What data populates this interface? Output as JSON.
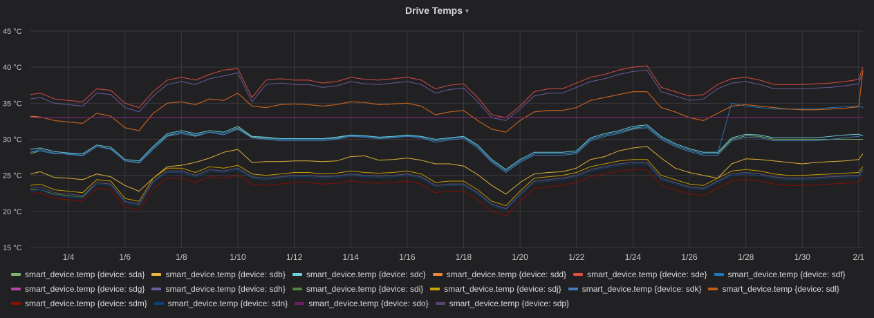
{
  "panel": {
    "title": "Drive Temps",
    "menu_caret": "▾"
  },
  "chart_data": {
    "type": "line",
    "title": "Drive Temps",
    "xlabel": "",
    "ylabel": "",
    "ylim": [
      15,
      45
    ],
    "y_ticks": [
      15,
      20,
      25,
      30,
      35,
      40,
      45
    ],
    "y_unit": "°C",
    "x_range": [
      2.65,
      32.15
    ],
    "x_tick_values": [
      4,
      6,
      8,
      10,
      12,
      14,
      16,
      18,
      20,
      22,
      24,
      26,
      28,
      30,
      32
    ],
    "x_tick_labels": [
      "1/4",
      "1/6",
      "1/8",
      "1/10",
      "1/12",
      "1/14",
      "1/16",
      "1/18",
      "1/20",
      "1/22",
      "1/24",
      "1/26",
      "1/28",
      "1/30",
      "2/1"
    ],
    "x": [
      2.65,
      3,
      3.5,
      4,
      4.5,
      5,
      5.5,
      6,
      6.5,
      7,
      7.5,
      8,
      8.5,
      9,
      9.5,
      10,
      10.5,
      11,
      11.5,
      12,
      12.5,
      13,
      13.5,
      14,
      14.5,
      15,
      15.5,
      16,
      16.5,
      17,
      17.5,
      18,
      18.5,
      19,
      19.5,
      20,
      20.5,
      21,
      21.5,
      22,
      22.5,
      23,
      23.5,
      24,
      24.5,
      25,
      25.5,
      26,
      26.5,
      27,
      27.5,
      28,
      28.5,
      29,
      29.5,
      30,
      30.5,
      31,
      31.5,
      32,
      32.15
    ],
    "series": [
      {
        "name": "smart_device.temp {device: sda}",
        "color": "#7eb26d",
        "values": [
          28,
          28.4,
          28,
          28,
          27.8,
          29,
          28.7,
          27,
          26.8,
          28.8,
          30.5,
          31,
          30.5,
          31,
          30.8,
          31.6,
          30.3,
          30.2,
          30,
          30,
          30,
          30,
          30.2,
          30.5,
          30.4,
          30.2,
          30.3,
          30.5,
          30.3,
          29.8,
          30.1,
          30.3,
          29,
          27,
          25.6,
          27,
          28,
          28,
          28,
          28.2,
          30,
          30.6,
          31,
          31.5,
          31.8,
          30.2,
          29.2,
          28.5,
          28,
          28,
          30,
          30.5,
          30.4,
          30,
          30,
          30,
          30,
          30,
          30,
          30,
          30
        ]
      },
      {
        "name": "smart_device.temp {device: sdb}",
        "color": "#eab839",
        "values": [
          25.2,
          25.5,
          24.7,
          24.6,
          24.4,
          25.2,
          24.8,
          23.6,
          22.8,
          24.6,
          26.2,
          26.4,
          26.8,
          27.4,
          28.2,
          28.6,
          26.8,
          26.9,
          26.9,
          27,
          27,
          26.9,
          27,
          27.6,
          27.7,
          27.1,
          27.2,
          27.4,
          27.1,
          26.6,
          26.6,
          26.3,
          25.1,
          23.6,
          22.4,
          24,
          25.2,
          25.4,
          25.5,
          26,
          27.2,
          27.6,
          28.4,
          28.8,
          29,
          27.4,
          26,
          25.4,
          25,
          24.6,
          26.6,
          27.3,
          27.2,
          27,
          26.8,
          26.6,
          26.8,
          26.9,
          27,
          27.2,
          28
        ]
      },
      {
        "name": "smart_device.temp {device: sdc}",
        "color": "#6ed0e0",
        "values": [
          28.6,
          28.8,
          28.3,
          28.1,
          28,
          29.2,
          28.9,
          27.2,
          27,
          29,
          30.8,
          31.2,
          30.8,
          31.2,
          31,
          31.8,
          30.4,
          30.3,
          30.1,
          30.1,
          30.1,
          30.1,
          30.3,
          30.6,
          30.5,
          30.3,
          30.4,
          30.6,
          30.4,
          30,
          30.2,
          30.4,
          29.2,
          27.2,
          25.8,
          27.2,
          28.2,
          28.2,
          28.2,
          28.4,
          30.2,
          30.8,
          31.2,
          31.8,
          32,
          30.4,
          29.4,
          28.7,
          28.2,
          28.2,
          30.2,
          30.7,
          30.6,
          30.2,
          30.2,
          30.2,
          30.2,
          30.4,
          30.6,
          30.7,
          30.5
        ]
      },
      {
        "name": "smart_device.temp {device: sdd}",
        "color": "#ef843c",
        "values": [
          33.2,
          33.1,
          32.6,
          32.4,
          32.2,
          33.6,
          33.2,
          31.6,
          31.2,
          33.6,
          35,
          35.2,
          34.8,
          35.6,
          35.4,
          36.4,
          34.6,
          34.4,
          34.8,
          34.9,
          34.8,
          34.6,
          34.8,
          35.2,
          35.1,
          34.8,
          34.9,
          35,
          34.6,
          33.4,
          33.8,
          34,
          32.6,
          31.4,
          31,
          32.6,
          33.8,
          34,
          34,
          34.4,
          35.4,
          35.8,
          36.2,
          36.6,
          36.6,
          34.4,
          33.8,
          33,
          32.6,
          33.6,
          34.6,
          34.8,
          34.6,
          34.4,
          34.2,
          34.1,
          34.1,
          34.2,
          34.3,
          34.5,
          39.6
        ]
      },
      {
        "name": "smart_device.temp {device: sde}",
        "color": "#e24d42",
        "values": [
          36.2,
          36.4,
          35.6,
          35.4,
          35.2,
          37,
          36.8,
          35,
          34.4,
          36.6,
          38.2,
          38.6,
          38.2,
          39,
          39.6,
          39.8,
          35.8,
          38.2,
          38.4,
          38.2,
          38.2,
          37.8,
          38,
          38.6,
          38.3,
          38.2,
          38.4,
          38.6,
          38.2,
          37,
          37.5,
          37.7,
          35.8,
          33.4,
          33,
          34.6,
          36.6,
          37,
          37,
          37.8,
          38.6,
          39,
          39.6,
          40,
          40.2,
          37.2,
          36.6,
          36,
          36.2,
          37.6,
          38.4,
          38.6,
          38.2,
          37.6,
          37.6,
          37.6,
          37.7,
          37.8,
          38,
          38.3,
          40
        ]
      },
      {
        "name": "smart_device.temp {device: sdf}",
        "color": "#1f78c1",
        "values": [
          28.2,
          28.4,
          28,
          28,
          27.8,
          29,
          28.6,
          27,
          26.8,
          28.8,
          30.6,
          31,
          30.6,
          31,
          30.8,
          31.5,
          30.2,
          30.1,
          30,
          30,
          30,
          30,
          30.1,
          30.5,
          30.4,
          30.2,
          30.3,
          30.5,
          30.3,
          29.8,
          30.1,
          30.3,
          29,
          27,
          25.6,
          27,
          28,
          28,
          28,
          28.2,
          30,
          30.6,
          31,
          31.6,
          31.8,
          30.2,
          29.2,
          28.5,
          28,
          28,
          35,
          34.6,
          34.4,
          34.2,
          34.2,
          34.2,
          34.2,
          34.4,
          34.5,
          34.6,
          34.4
        ]
      },
      {
        "name": "smart_device.temp {device: sdg}",
        "color": "#ba43a9",
        "values": [
          33,
          33,
          33,
          33,
          33,
          33,
          33,
          33,
          33,
          33,
          33,
          33,
          33,
          33,
          33,
          33,
          33,
          33,
          33,
          33,
          33,
          33,
          33,
          33,
          33,
          33,
          33,
          33,
          33,
          33,
          33,
          33,
          33,
          33,
          33,
          33,
          33,
          33,
          33,
          33,
          33,
          33,
          33,
          33,
          33,
          33,
          33,
          33,
          33,
          33,
          33,
          33,
          33,
          33,
          33,
          33,
          33,
          33,
          33,
          33,
          33
        ]
      },
      {
        "name": "smart_device.temp {device: sdh}",
        "color": "#705da0",
        "values": [
          35.6,
          35.8,
          35,
          34.8,
          34.6,
          36.4,
          36.2,
          34.4,
          33.8,
          36,
          37.6,
          38,
          37.6,
          38.4,
          38.8,
          39.2,
          35.2,
          37.6,
          37.8,
          37.6,
          37.6,
          37.2,
          37.4,
          38,
          37.7,
          37.6,
          37.8,
          38,
          37.6,
          36.4,
          36.9,
          37.1,
          35.2,
          33,
          32.6,
          34.2,
          36,
          36.4,
          36.4,
          37.2,
          38,
          38.4,
          39,
          39.4,
          39.6,
          36.6,
          36,
          35.4,
          35.6,
          37,
          37.8,
          38,
          37.6,
          37,
          37,
          37,
          37.1,
          37.2,
          37.4,
          37.7,
          39.4
        ]
      },
      {
        "name": "smart_device.temp {device: sdi}",
        "color": "#508642",
        "values": [
          23,
          23,
          22.4,
          22.2,
          22,
          24,
          23.8,
          21.4,
          21,
          24.2,
          25.6,
          25.6,
          25,
          25.8,
          25.6,
          26,
          24.8,
          24.6,
          24.8,
          25,
          25,
          24.8,
          24.9,
          25.2,
          25,
          24.9,
          25,
          25.2,
          24.8,
          23.6,
          23.8,
          23.8,
          22.6,
          21,
          20.4,
          22.4,
          24.2,
          24.4,
          24.6,
          25,
          25.8,
          26.2,
          26.6,
          26.8,
          26.8,
          24.6,
          24,
          23.4,
          23.2,
          24.2,
          25.2,
          25.4,
          25.2,
          24.8,
          24.6,
          24.6,
          24.7,
          24.8,
          24.9,
          25,
          25.8
        ]
      },
      {
        "name": "smart_device.temp {device: sdj}",
        "color": "#cca300",
        "values": [
          23.6,
          23.8,
          23,
          22.8,
          22.6,
          24.4,
          24.2,
          21.8,
          21.4,
          24.6,
          26,
          26,
          25.4,
          26.2,
          26,
          26.4,
          25.2,
          25,
          25.2,
          25.4,
          25.4,
          25.2,
          25.3,
          25.6,
          25.4,
          25.3,
          25.4,
          25.6,
          25.2,
          24,
          24.2,
          24.2,
          23,
          21.4,
          20.8,
          22.8,
          24.6,
          24.8,
          25,
          25.4,
          26.2,
          26.6,
          27,
          27.2,
          27.2,
          25,
          24.4,
          23.8,
          23.6,
          24.6,
          25.6,
          25.8,
          25.6,
          25.2,
          25,
          25,
          25.1,
          25.2,
          25.3,
          25.4,
          26.2
        ]
      },
      {
        "name": "smart_device.temp {device: sdk}",
        "color": "#447ebc",
        "values": [
          28.2,
          28.6,
          28.1,
          27.9,
          27.7,
          29,
          28.7,
          27,
          26.7,
          28.6,
          30.4,
          30.8,
          30.4,
          31,
          30.6,
          31.4,
          30.2,
          30,
          29.8,
          29.8,
          29.8,
          29.8,
          30,
          30.4,
          30.3,
          30.1,
          30.2,
          30.4,
          30.2,
          29.6,
          29.9,
          30.1,
          28.8,
          26.8,
          25.4,
          26.8,
          27.8,
          27.8,
          27.8,
          28,
          29.8,
          30.4,
          30.8,
          31.4,
          31.6,
          30,
          29,
          28.3,
          27.8,
          27.8,
          29.8,
          30.3,
          30.2,
          29.8,
          29.8,
          29.8,
          29.8,
          30,
          30.2,
          30.4,
          30.6
        ]
      },
      {
        "name": "smart_device.temp {device: sdl}",
        "color": "#c15c17",
        "values": [
          33,
          33.1,
          32.6,
          32.4,
          32.2,
          33.6,
          33.2,
          31.6,
          31.2,
          33.6,
          35,
          35.2,
          34.8,
          35.6,
          35.4,
          36.4,
          34.6,
          34.4,
          34.8,
          34.9,
          34.8,
          34.6,
          34.8,
          35.2,
          35.1,
          34.8,
          34.9,
          35,
          34.6,
          33.4,
          33.8,
          34,
          32.6,
          31.4,
          31,
          32.6,
          33.8,
          34,
          34,
          34.4,
          35.4,
          35.8,
          36.2,
          36.6,
          36.6,
          34.4,
          33.8,
          33,
          32.6,
          33.6,
          34.6,
          34.8,
          34.6,
          34.4,
          34.2,
          34.1,
          34.1,
          34.2,
          34.3,
          34.5,
          39.6
        ]
      },
      {
        "name": "smart_device.temp {device: sdm}",
        "color": "#890f02",
        "values": [
          22.4,
          22.6,
          21.8,
          21.6,
          21.4,
          23.2,
          23,
          20.6,
          20.2,
          23.2,
          24.6,
          24.6,
          24,
          24.8,
          24.6,
          25,
          23.8,
          23.6,
          23.8,
          24,
          24,
          23.8,
          23.9,
          24.2,
          24,
          23.9,
          24,
          24.2,
          23.8,
          22.6,
          22.8,
          22.8,
          21.6,
          20,
          19.4,
          21.4,
          23.2,
          23.4,
          23.6,
          24,
          24.8,
          25.2,
          25.6,
          25.8,
          25.8,
          23.6,
          23,
          22.4,
          22.2,
          23.2,
          24.2,
          24.4,
          24.2,
          23.8,
          23.6,
          23.6,
          23.7,
          23.8,
          23.9,
          24,
          24.8
        ]
      },
      {
        "name": "smart_device.temp {device: sdn}",
        "color": "#0a437c",
        "values": [
          22.8,
          23,
          22.2,
          22,
          21.8,
          23.8,
          23.6,
          21.2,
          20.8,
          24,
          25.4,
          25.4,
          24.8,
          25.6,
          25.4,
          25.8,
          24.6,
          24.4,
          24.6,
          24.8,
          24.8,
          24.6,
          24.7,
          25,
          24.8,
          24.7,
          24.8,
          25,
          24.6,
          23.4,
          23.6,
          23.6,
          22.4,
          20.8,
          20.2,
          22.2,
          24,
          24.2,
          24.4,
          24.8,
          25.6,
          26,
          26.4,
          26.6,
          26.6,
          24.4,
          23.8,
          23.2,
          23,
          24,
          25,
          25.2,
          25,
          24.6,
          24.4,
          24.4,
          24.5,
          24.6,
          24.7,
          24.8,
          25.6
        ]
      },
      {
        "name": "smart_device.temp {device: sdo}",
        "color": "#6d1f62",
        "values": [
          33,
          33,
          33,
          33,
          33,
          33,
          33,
          33,
          33,
          33,
          33,
          33,
          33,
          33,
          33,
          33,
          33,
          33,
          33,
          33,
          33,
          33,
          33,
          33,
          33,
          33,
          33,
          33,
          33,
          33,
          33,
          33,
          33,
          33,
          33,
          33,
          33,
          33,
          33,
          33,
          33,
          33,
          33,
          33,
          33,
          33,
          33,
          33,
          33,
          33,
          33,
          33,
          33,
          33,
          33,
          33,
          33,
          33,
          33,
          33,
          33
        ]
      },
      {
        "name": "smart_device.temp {device: sdp}",
        "color": "#584477",
        "values": [
          23.2,
          23.4,
          22.6,
          22.4,
          22.2,
          24,
          23.8,
          21.4,
          21,
          24.2,
          25.6,
          25.6,
          25,
          25.8,
          25.6,
          26,
          24.8,
          24.6,
          24.8,
          25,
          25,
          24.8,
          24.9,
          25.2,
          25,
          24.9,
          25,
          25.2,
          24.8,
          23.6,
          23.8,
          23.8,
          22.6,
          21,
          20.4,
          22.4,
          24.2,
          24.4,
          24.6,
          25,
          25.8,
          26.2,
          26.6,
          26.8,
          26.8,
          24.6,
          24,
          23.4,
          23.2,
          24.2,
          25.2,
          25.4,
          25.2,
          24.8,
          24.6,
          24.6,
          24.7,
          24.8,
          24.9,
          25,
          25.8
        ]
      }
    ],
    "grid": true,
    "legend_position": "bottom"
  }
}
